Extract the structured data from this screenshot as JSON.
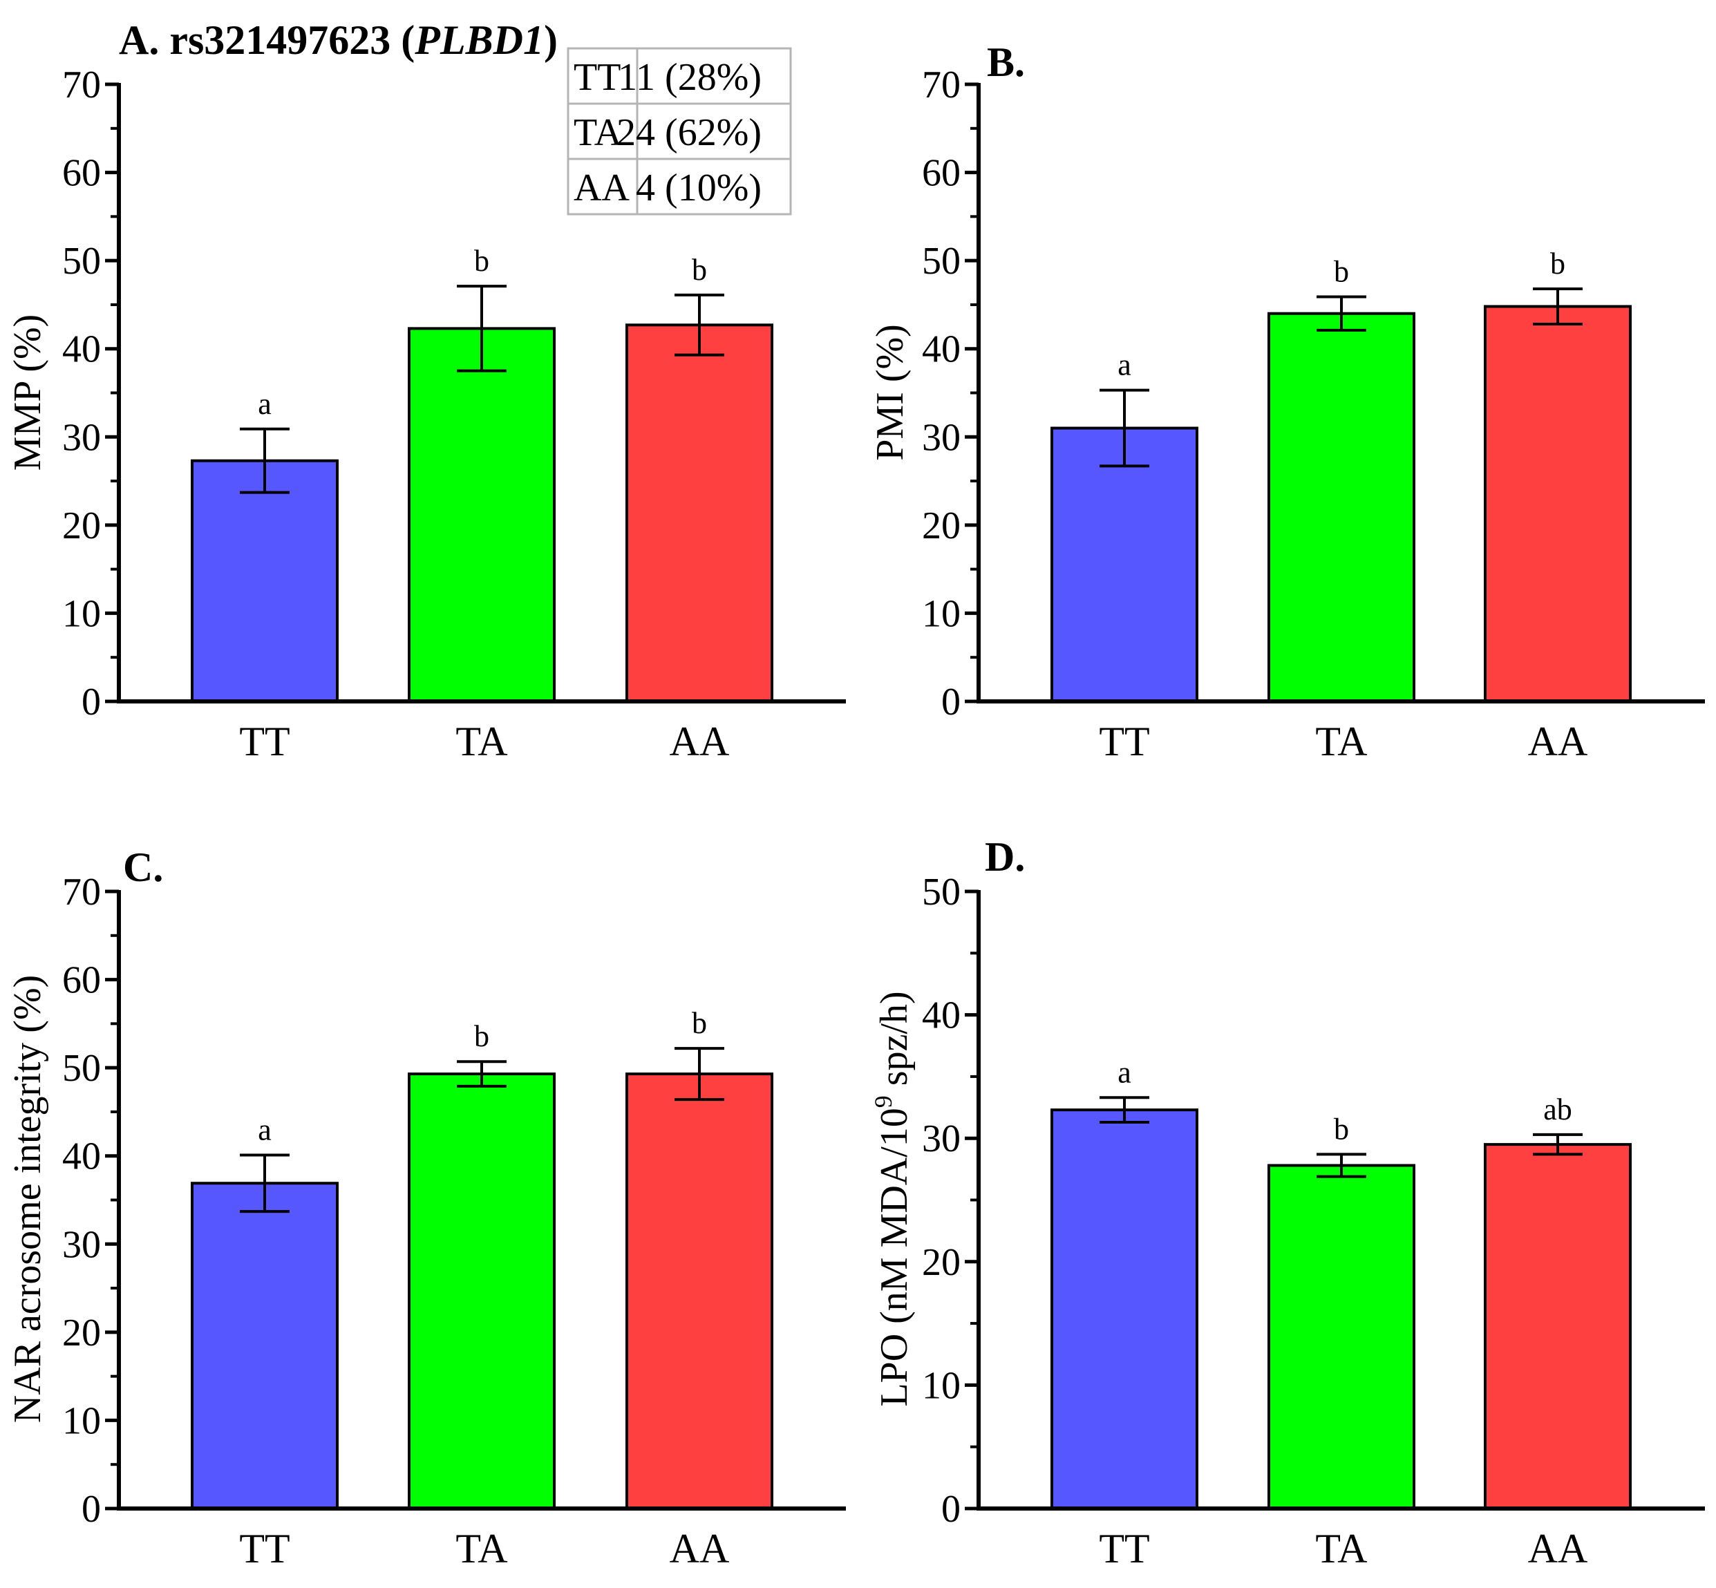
{
  "figure": {
    "legend_table": {
      "rows": [
        {
          "genotype": "TT",
          "value": "11 (28%)"
        },
        {
          "genotype": "TA",
          "value": "24 (62%)"
        },
        {
          "genotype": "AA",
          "value": "4 (10%)"
        }
      ]
    }
  },
  "colors": {
    "TT": "#5757ff",
    "TA": "#00ff00",
    "AA": "#ff4040"
  },
  "chart_data": [
    {
      "panel": "A",
      "type": "bar",
      "title_prefix": "A. rs321497623 (",
      "title_italic": "PLBD1",
      "title_suffix": ")",
      "categories": [
        "TT",
        "TA",
        "AA"
      ],
      "values": [
        27.3,
        42.3,
        42.7
      ],
      "errors": [
        3.6,
        4.8,
        3.4
      ],
      "significance": [
        "a",
        "b",
        "b"
      ],
      "ylabel": "MMP (%)",
      "ylim": [
        0,
        70
      ],
      "yticks": [
        0,
        10,
        20,
        30,
        40,
        50,
        60,
        70
      ]
    },
    {
      "panel": "B",
      "type": "bar",
      "title": "B.",
      "categories": [
        "TT",
        "TA",
        "AA"
      ],
      "values": [
        31.0,
        44.0,
        44.8
      ],
      "errors": [
        4.3,
        1.9,
        2.0
      ],
      "significance": [
        "a",
        "b",
        "b"
      ],
      "ylabel": "PMI (%)",
      "ylim": [
        0,
        70
      ],
      "yticks": [
        0,
        10,
        20,
        30,
        40,
        50,
        60,
        70
      ]
    },
    {
      "panel": "C",
      "type": "bar",
      "title": "C.",
      "categories": [
        "TT",
        "TA",
        "AA"
      ],
      "values": [
        36.9,
        49.3,
        49.3
      ],
      "errors": [
        3.2,
        1.4,
        2.9
      ],
      "significance": [
        "a",
        "b",
        "b"
      ],
      "ylabel": "NAR acrosome integrity (%)",
      "ylim": [
        0,
        70
      ],
      "yticks": [
        0,
        10,
        20,
        30,
        40,
        50,
        60,
        70
      ]
    },
    {
      "panel": "D",
      "type": "bar",
      "title": "D.",
      "categories": [
        "TT",
        "TA",
        "AA"
      ],
      "values": [
        32.3,
        27.8,
        29.5
      ],
      "errors": [
        1.0,
        0.9,
        0.8
      ],
      "significance": [
        "a",
        "b",
        "ab"
      ],
      "ylabel_pre": "LPO (nM MDA/10",
      "ylabel_sup": "9",
      "ylabel_post": " spz/h)",
      "ylim": [
        0,
        50
      ],
      "yticks": [
        0,
        10,
        20,
        30,
        40,
        50
      ]
    }
  ]
}
